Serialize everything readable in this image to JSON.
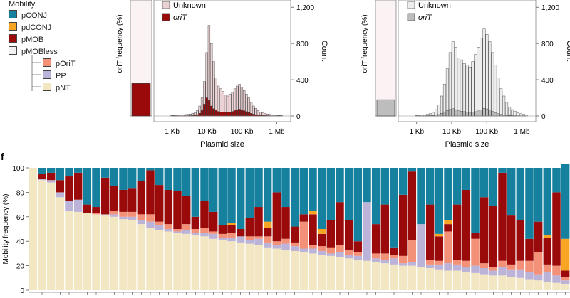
{
  "legend": {
    "title": "Mobility",
    "items": [
      {
        "label": "pCONJ",
        "color": "#16809f"
      },
      {
        "label": "pdCONJ",
        "color": "#f6a623"
      },
      {
        "label": "pMOB",
        "color": "#9b0a0a"
      },
      {
        "label": "pMOBless",
        "color": "#f2f2f2"
      },
      {
        "label": "pOriT",
        "color": "#f39078"
      },
      {
        "label": "PP",
        "color": "#bcb4d8"
      },
      {
        "label": "pNT",
        "color": "#f3e7c3"
      }
    ]
  },
  "chart_data": [
    {
      "type": "bar",
      "panel": "left-summary",
      "ylabel": "oriT frequency (%)",
      "categories": [
        "oriT"
      ],
      "values": [
        28
      ],
      "ylim": [
        0,
        100
      ]
    },
    {
      "type": "bar",
      "panel": "left-histogram",
      "xlabel": "Plasmid size",
      "ylabel": "Count",
      "xscale": "log",
      "xlim": [
        300,
        2500000
      ],
      "ylim": [
        0,
        1280
      ],
      "xticks": [
        "1 Kb",
        "10 Kb",
        "100 Kb",
        "1 Mb"
      ],
      "xtick_values": [
        1000,
        10000,
        100000,
        1000000
      ],
      "yticks": [
        "0",
        "400",
        "800",
        "1,200"
      ],
      "ytick_values": [
        0,
        400,
        800,
        1200
      ],
      "legend": [
        "Unknown",
        "oriT"
      ],
      "legend_colors": [
        "#ebd2d4",
        "#9b0a0a"
      ],
      "series": [
        {
          "name": "Unknown",
          "color": "#ebd2d4",
          "values": [
            5,
            6,
            8,
            10,
            12,
            14,
            16,
            18,
            22,
            30,
            40,
            60,
            110,
            200,
            380,
            700,
            1000,
            800,
            600,
            420,
            330,
            300,
            270,
            230,
            220,
            240,
            260,
            300,
            330,
            350,
            320,
            280,
            240,
            200,
            150,
            110,
            85,
            60,
            45,
            35,
            28,
            22,
            18,
            14,
            10,
            8,
            6,
            5
          ]
        },
        {
          "name": "oriT",
          "color": "#9b0a0a",
          "values": [
            0,
            1,
            1,
            2,
            2,
            2,
            3,
            3,
            4,
            5,
            8,
            14,
            30,
            60,
            130,
            200,
            170,
            110,
            80,
            60,
            50,
            45,
            42,
            40,
            40,
            45,
            50,
            60,
            70,
            75,
            68,
            58,
            48,
            38,
            28,
            20,
            15,
            10,
            8,
            6,
            5,
            4,
            3,
            2,
            2,
            1,
            1,
            0
          ]
        }
      ]
    },
    {
      "type": "bar",
      "panel": "right-summary",
      "ylabel": "oriT frequency (%)",
      "categories": [
        "oriT"
      ],
      "values": [
        14
      ],
      "ylim": [
        0,
        100
      ]
    },
    {
      "type": "bar",
      "panel": "right-histogram",
      "xlabel": "Plasmid size",
      "ylabel": "Count",
      "xscale": "log",
      "xlim": [
        300,
        2500000
      ],
      "ylim": [
        0,
        1280
      ],
      "xticks": [
        "1 Kb",
        "10 Kb",
        "100 Kb",
        "1 Mb"
      ],
      "xtick_values": [
        1000,
        10000,
        100000,
        1000000
      ],
      "yticks": [
        "0",
        "400",
        "800",
        "1,200"
      ],
      "ytick_values": [
        0,
        400,
        800,
        1200
      ],
      "legend": [
        "Unknown",
        "oriT"
      ],
      "legend_colors": [
        "#ededed",
        "#bdbdbd"
      ],
      "series": [
        {
          "name": "Unknown",
          "color": "#ededed",
          "values": [
            6,
            8,
            10,
            14,
            18,
            26,
            40,
            70,
            120,
            220,
            350,
            520,
            700,
            820,
            760,
            640,
            620,
            580,
            560,
            540,
            600,
            680,
            760,
            860,
            960,
            900,
            820,
            700,
            560,
            420,
            300,
            220,
            150,
            100,
            70,
            50,
            35,
            25,
            18,
            12
          ]
        },
        {
          "name": "oriT",
          "color": "#bdbdbd",
          "values": [
            0,
            1,
            1,
            2,
            3,
            4,
            6,
            10,
            16,
            30,
            46,
            60,
            72,
            80,
            70,
            58,
            52,
            48,
            44,
            40,
            42,
            48,
            56,
            68,
            84,
            78,
            64,
            50,
            38,
            26,
            18,
            12,
            8,
            6,
            4,
            3,
            2,
            1,
            1,
            0
          ]
        }
      ]
    },
    {
      "type": "bar",
      "panel": "f",
      "panel_label": "f",
      "stacked": true,
      "ylabel": "Mobility frequency (%)",
      "ylim": [
        0,
        100
      ],
      "yticks": [
        "0",
        "20",
        "40",
        "60",
        "80",
        "100"
      ],
      "ytick_values": [
        0,
        20,
        40,
        60,
        80,
        100
      ],
      "stack_order": [
        "pNT",
        "PP",
        "pOriT",
        "pMOB",
        "pdCONJ",
        "pCONJ"
      ],
      "stack_colors": [
        "#f3e7c3",
        "#bcb4d8",
        "#f39078",
        "#9b0a0a",
        "#f6a623",
        "#16809f"
      ],
      "series": [
        {
          "name": "pNT",
          "values": [
            100,
            90,
            88,
            76,
            65,
            64,
            63,
            62,
            61,
            60,
            58,
            57,
            54,
            51,
            49,
            48,
            47,
            46,
            45,
            44,
            42,
            41,
            40,
            39,
            38,
            37,
            35,
            34,
            33,
            32,
            31,
            30,
            29,
            28,
            27,
            26,
            25,
            24,
            23,
            22,
            21,
            20,
            20,
            19,
            18,
            17,
            16,
            16,
            15,
            14,
            13,
            12,
            12,
            11,
            10,
            9,
            8,
            7,
            6,
            5
          ]
        },
        {
          "name": "PP",
          "values": [
            0,
            1,
            2,
            4,
            8,
            10,
            0,
            0,
            1,
            2,
            2,
            3,
            3,
            5,
            4,
            2,
            1,
            3,
            2,
            3,
            4,
            2,
            3,
            5,
            3,
            5,
            4,
            3,
            5,
            4,
            3,
            4,
            3,
            2,
            4,
            3,
            3,
            48,
            3,
            3,
            5,
            2,
            3,
            35,
            3,
            4,
            6,
            5,
            4,
            6,
            5,
            4,
            7,
            6,
            7,
            6,
            5,
            8,
            6,
            3
          ]
        },
        {
          "name": "pOriT",
          "values": [
            0,
            0,
            0,
            0,
            0,
            0,
            0,
            1,
            0,
            3,
            4,
            4,
            5,
            6,
            3,
            4,
            2,
            5,
            3,
            4,
            2,
            3,
            4,
            0,
            3,
            2,
            5,
            3,
            4,
            3,
            22,
            3,
            4,
            5,
            6,
            4,
            3,
            0,
            4,
            5,
            3,
            6,
            18,
            0,
            4,
            3,
            26,
            4,
            5,
            22,
            4,
            3,
            5,
            4,
            7,
            9,
            18,
            6,
            8,
            3
          ]
        },
        {
          "name": "pMOB",
          "values": [
            0,
            4,
            6,
            10,
            20,
            22,
            7,
            5,
            30,
            20,
            18,
            19,
            27,
            36,
            30,
            28,
            31,
            23,
            10,
            22,
            16,
            7,
            6,
            6,
            15,
            24,
            7,
            40,
            26,
            13,
            6,
            25,
            10,
            22,
            35,
            24,
            9,
            0,
            24,
            40,
            6,
            50,
            56,
            0,
            45,
            20,
            6,
            45,
            58,
            5,
            54,
            50,
            72,
            40,
            33,
            18,
            25,
            22,
            60,
            5
          ]
        },
        {
          "name": "pdCONJ",
          "values": [
            0,
            0,
            0,
            0,
            0,
            0,
            0,
            0,
            0,
            0,
            0,
            0,
            0,
            0,
            0,
            0,
            0,
            0,
            0,
            0,
            0,
            0,
            2,
            0,
            0,
            0,
            5,
            0,
            0,
            0,
            0,
            3,
            4,
            0,
            0,
            0,
            0,
            0,
            0,
            0,
            0,
            0,
            0,
            0,
            0,
            2,
            3,
            0,
            0,
            0,
            0,
            0,
            0,
            0,
            0,
            0,
            0,
            2,
            0,
            26
          ]
        },
        {
          "name": "pCONJ",
          "values": [
            0,
            5,
            4,
            10,
            7,
            4,
            30,
            32,
            8,
            15,
            18,
            17,
            11,
            2,
            14,
            18,
            19,
            23,
            40,
            27,
            36,
            47,
            45,
            50,
            41,
            32,
            44,
            20,
            32,
            48,
            38,
            35,
            50,
            43,
            28,
            43,
            60,
            28,
            46,
            30,
            65,
            22,
            3,
            46,
            30,
            54,
            43,
            30,
            18,
            53,
            24,
            31,
            4,
            39,
            43,
            58,
            44,
            55,
            20,
            61
          ]
        }
      ]
    }
  ]
}
